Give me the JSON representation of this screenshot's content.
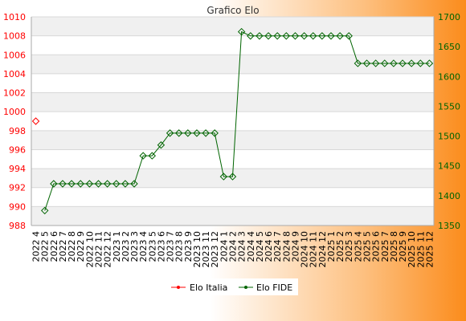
{
  "chart_data": {
    "type": "line",
    "title": "Grafico Elo",
    "categories": [
      "2022 4",
      "2022 5",
      "2022 6",
      "2022 7",
      "2022 8",
      "2022 9",
      "2022 10",
      "2022 11",
      "2022 12",
      "2023 1",
      "2023 2",
      "2023 3",
      "2023 4",
      "2023 5",
      "2023 6",
      "2023 7",
      "2023 8",
      "2023 9",
      "2023 10",
      "2023 11",
      "2023 12",
      "2024 1",
      "2024 2",
      "2024 3",
      "2024 4",
      "2024 5",
      "2024 6",
      "2024 7",
      "2024 8",
      "2024 9",
      "2024 10",
      "2024 11",
      "2024 12",
      "2025 1",
      "2025 2",
      "2025 3",
      "2025 4",
      "2025 5",
      "2025 6",
      "2025 7",
      "2025 8",
      "2025 9",
      "2025 10",
      "2025 11",
      "2025 12"
    ],
    "series": [
      {
        "name": "Elo Italia",
        "axis": "left",
        "color": "#ff0000",
        "values": [
          999,
          null,
          null,
          null,
          null,
          null,
          null,
          null,
          null,
          null,
          null,
          null,
          null,
          null,
          null,
          null,
          null,
          null,
          null,
          null,
          null,
          null,
          null,
          null,
          null,
          null,
          null,
          null,
          null,
          null,
          null,
          null,
          null,
          null,
          null,
          null,
          null,
          null,
          null,
          null,
          null,
          null,
          null,
          null,
          null
        ]
      },
      {
        "name": "Elo FIDE",
        "axis": "right",
        "color": "#006400",
        "values": [
          null,
          1375,
          1420,
          1420,
          1420,
          1420,
          1420,
          1420,
          1420,
          1420,
          1420,
          1420,
          1467,
          1467,
          1485,
          1505,
          1505,
          1505,
          1505,
          1505,
          1505,
          1432,
          1432,
          1675,
          1668,
          1668,
          1668,
          1668,
          1668,
          1668,
          1668,
          1668,
          1668,
          1668,
          1668,
          1668,
          1622,
          1622,
          1622,
          1622,
          1622,
          1622,
          1622,
          1622,
          1622
        ]
      }
    ],
    "y_left": {
      "min": 988,
      "max": 1010,
      "ticks": [
        988,
        990,
        992,
        994,
        996,
        998,
        1000,
        1002,
        1004,
        1006,
        1008,
        1010
      ],
      "color": "#ff0000"
    },
    "y_right": {
      "min": 1350,
      "max": 1700,
      "ticks": [
        1350,
        1400,
        1450,
        1500,
        1550,
        1600,
        1650,
        1700
      ],
      "color": "#006400"
    },
    "grid": true,
    "legend_position": "bottom"
  }
}
